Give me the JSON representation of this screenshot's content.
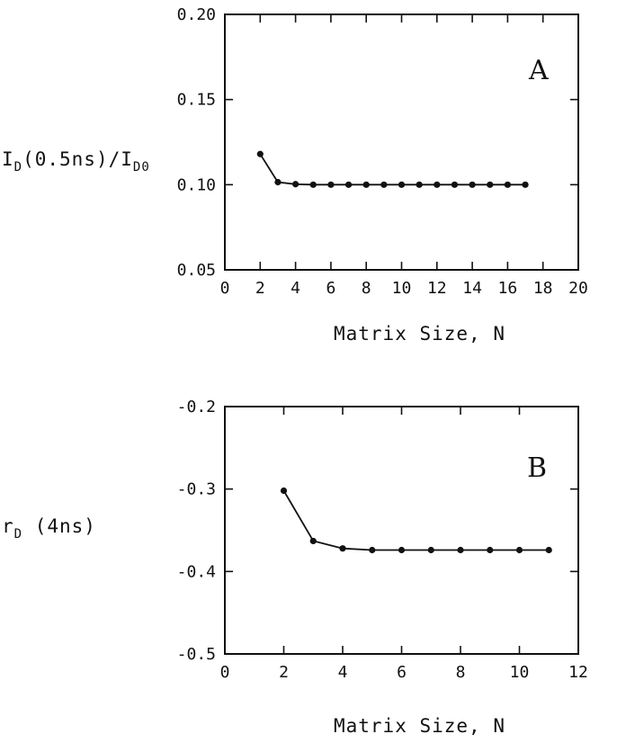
{
  "chart_data": [
    {
      "type": "line",
      "panel_label": "A",
      "xlabel": "Matrix Size, N",
      "ylabel_main": "I",
      "ylabel_sub1": "D",
      "ylabel_mid": "(0.5ns)/I",
      "ylabel_sub2": "D0",
      "xlim": [
        0,
        20
      ],
      "ylim": [
        0.05,
        0.2
      ],
      "xticks": [
        0,
        2,
        4,
        6,
        8,
        10,
        12,
        14,
        16,
        18,
        20
      ],
      "xtick_labels": [
        "0",
        "2",
        "4",
        "6",
        "8",
        "10",
        "12",
        "14",
        "16",
        "18",
        "20"
      ],
      "yticks": [
        0.05,
        0.1,
        0.15,
        0.2
      ],
      "ytick_labels": [
        "0.05",
        "0.10",
        "0.15",
        "0.20"
      ],
      "x": [
        2,
        3,
        4,
        5,
        6,
        7,
        8,
        9,
        10,
        11,
        12,
        13,
        14,
        15,
        16,
        17
      ],
      "y": [
        0.118,
        0.1015,
        0.1003,
        0.1,
        0.1,
        0.1,
        0.1,
        0.1,
        0.1,
        0.1,
        0.1,
        0.1,
        0.1,
        0.1,
        0.1,
        0.1
      ]
    },
    {
      "type": "line",
      "panel_label": "B",
      "xlabel": "Matrix Size, N",
      "ylabel_main": "r",
      "ylabel_sub1": "D",
      "ylabel_mid": " (4ns)",
      "ylabel_sub2": "",
      "xlim": [
        0,
        12
      ],
      "ylim": [
        -0.5,
        -0.2
      ],
      "xticks": [
        0,
        2,
        4,
        6,
        8,
        10,
        12
      ],
      "xtick_labels": [
        "0",
        "2",
        "4",
        "6",
        "8",
        "10",
        "12"
      ],
      "yticks": [
        -0.5,
        -0.4,
        -0.3,
        -0.2
      ],
      "ytick_labels": [
        "-0.5",
        "-0.4",
        "-0.3",
        "-0.2"
      ],
      "x": [
        2,
        3,
        4,
        5,
        6,
        7,
        8,
        9,
        10,
        11
      ],
      "y": [
        -0.302,
        -0.363,
        -0.372,
        -0.374,
        -0.374,
        -0.374,
        -0.374,
        -0.374,
        -0.374,
        -0.374
      ]
    }
  ]
}
